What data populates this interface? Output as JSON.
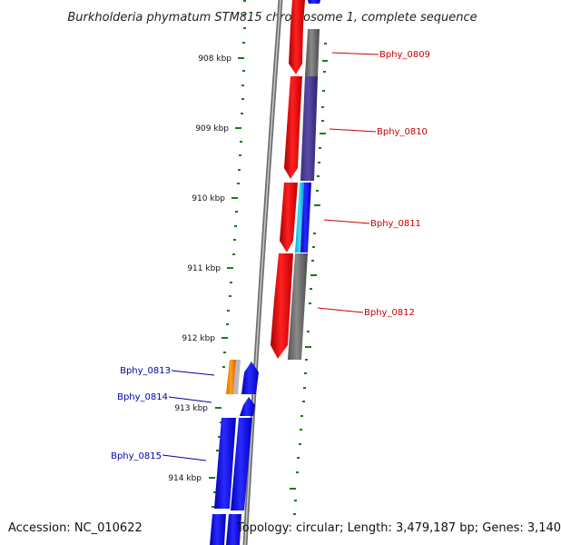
{
  "title": "Burkholderia phymatum STM815 chromosome 1, complete sequence",
  "footer": {
    "accession": "Accession: NC_010622",
    "summary": "Topology: circular; Length: 3,479,187 bp; Genes: 3,140"
  },
  "ticks": [
    "908 kbp",
    "909 kbp",
    "910 kbp",
    "911 kbp",
    "912 kbp",
    "913 kbp",
    "914 kbp"
  ],
  "genes_right": [
    {
      "label": "Bphy_0809",
      "color": "#cc0000"
    },
    {
      "label": "Bphy_0810",
      "color": "#cc0000"
    },
    {
      "label": "Bphy_0811",
      "color": "#cc0000"
    },
    {
      "label": "Bphy_0812",
      "color": "#cc0000"
    }
  ],
  "genes_left": [
    {
      "label": "Bphy_0813",
      "color": "#0000aa"
    },
    {
      "label": "Bphy_0814",
      "color": "#0000aa"
    },
    {
      "label": "Bphy_0815",
      "color": "#0000aa"
    }
  ],
  "colors": {
    "forward_strand": "#ff0000",
    "reverse_strand": "#0000ff",
    "gray_block": "#666666",
    "purple_block": "#4a3c8c",
    "cyan_block": "#00c8ff",
    "orange_block": "#ff8c00",
    "tick": "#1a7a1a",
    "backbone": "#888888"
  }
}
